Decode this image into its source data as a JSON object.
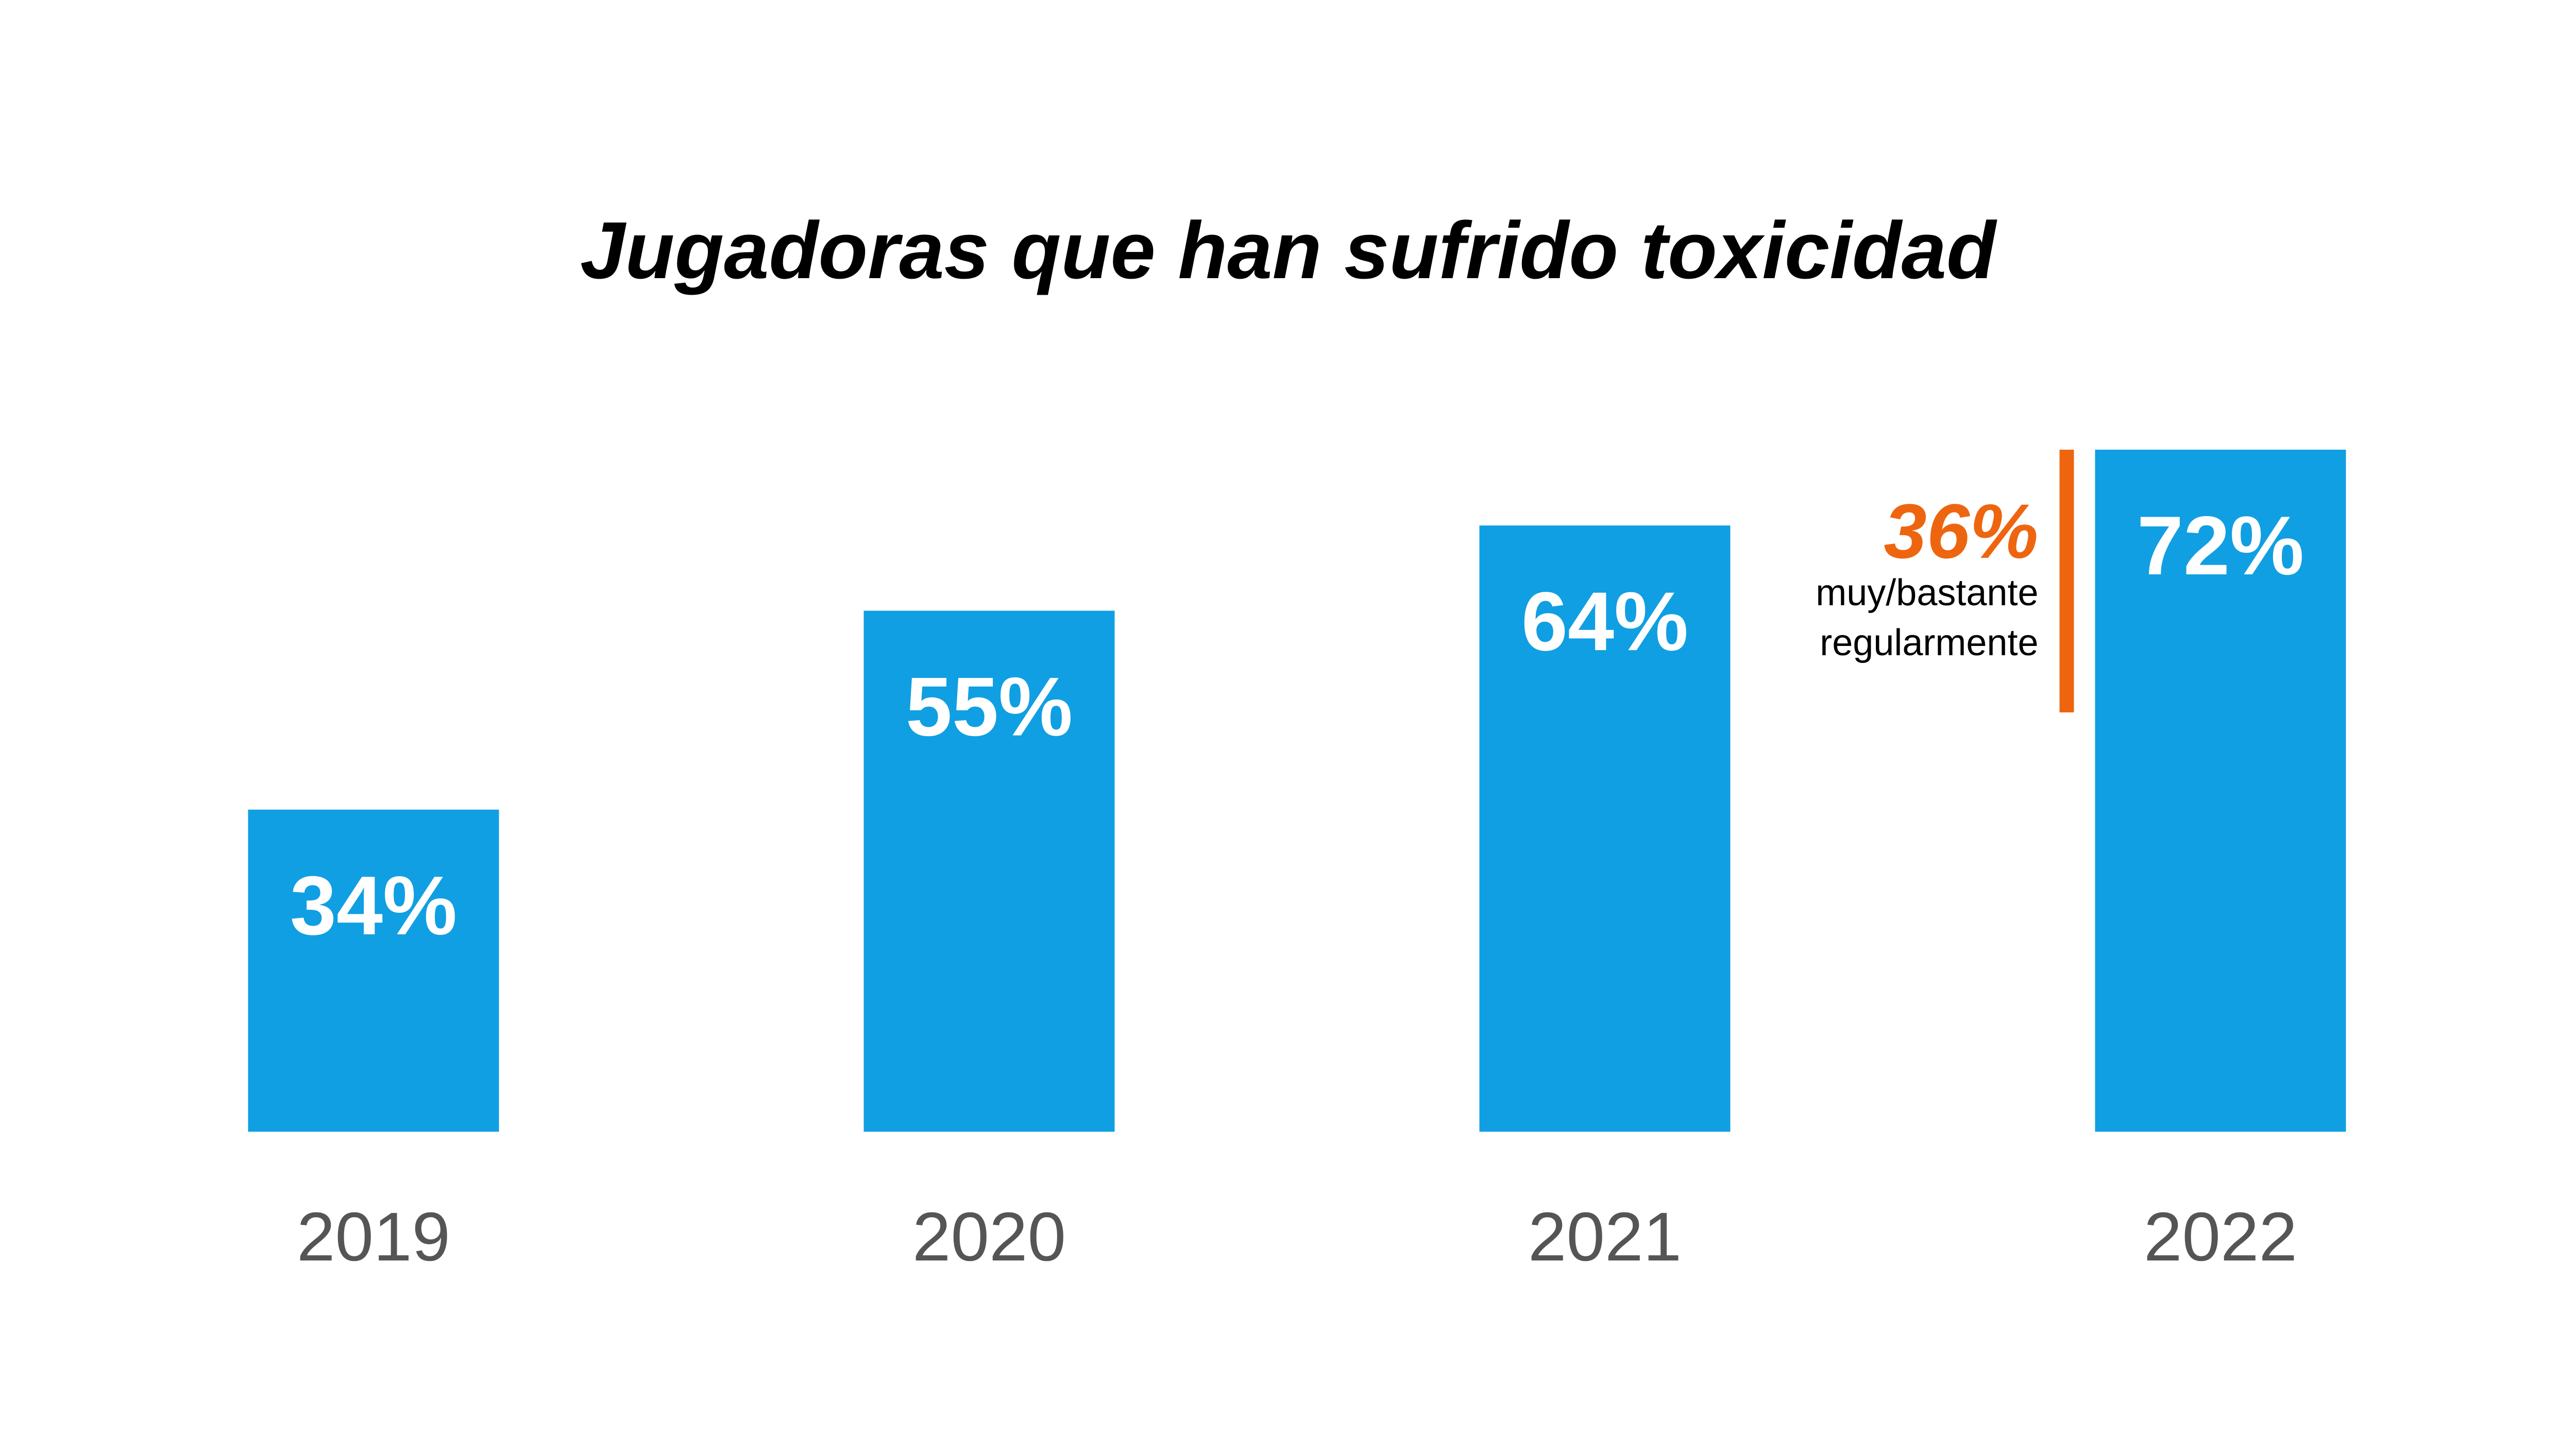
{
  "chart_data": {
    "type": "bar",
    "title": "Jugadoras que han sufrido toxicidad",
    "xlabel": "",
    "ylabel": "",
    "categories": [
      "2019",
      "2020",
      "2021",
      "2022"
    ],
    "values": [
      34,
      55,
      64,
      72
    ],
    "data_labels": [
      "34%",
      "55%",
      "64%",
      "72%"
    ],
    "ylim": [
      0,
      72
    ],
    "grid": false,
    "legend": "none",
    "annotation": {
      "category": "2022",
      "value": 36,
      "value_label": "36%",
      "text_lines": [
        "muy/bastante",
        "regularmente"
      ]
    }
  },
  "colors": {
    "bar": "#109FE2",
    "annotation": "#EE6510",
    "title": "#000000",
    "tick": "#555555",
    "background": "#FFFFFF"
  }
}
